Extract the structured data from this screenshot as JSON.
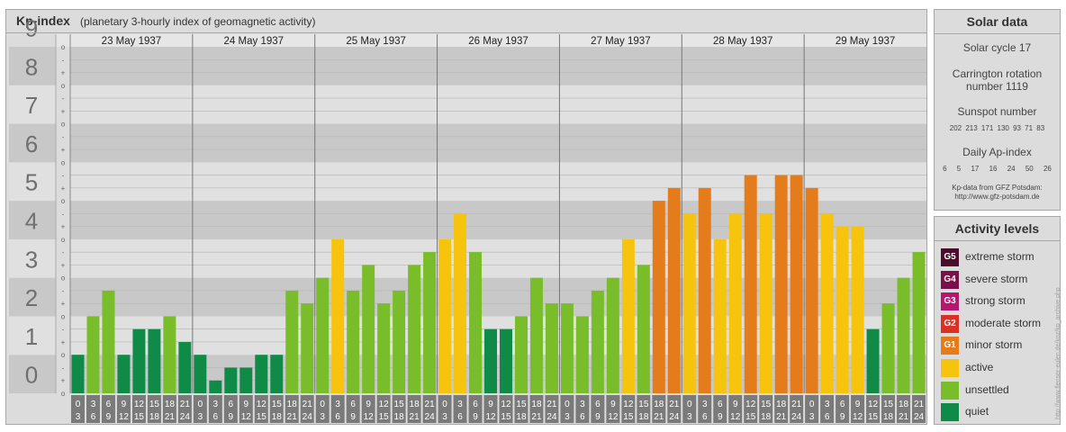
{
  "header": {
    "title": "Kp-index",
    "subtitle": "(planetary 3-hourly index of geomagnetic activity)"
  },
  "solar": {
    "title": "Solar data",
    "cycle": "Solar cycle 17",
    "carrington_line1": "Carrington rotation",
    "carrington_line2": "number 1119",
    "sunspot_label": "Sunspot number",
    "sunspot_values": "202 213 171 130 93 71 83",
    "ap_label": "Daily Ap-index",
    "ap_values": "6 5 17 16 24 50 26",
    "source_line1": "Kp-data from GFZ Potsdam:",
    "source_line2": "http://www.gfz-potsdam.de"
  },
  "levels": {
    "title": "Activity levels",
    "items": [
      {
        "badge": "G5",
        "label": "extreme storm",
        "color": "#4a0d2c"
      },
      {
        "badge": "G4",
        "label": "severe storm",
        "color": "#7a0f4b"
      },
      {
        "badge": "G3",
        "label": "strong storm",
        "color": "#b5176e"
      },
      {
        "badge": "G2",
        "label": "moderate storm",
        "color": "#d93124"
      },
      {
        "badge": "G1",
        "label": "minor storm",
        "color": "#e47c1b"
      },
      {
        "badge": "",
        "label": "active",
        "color": "#f6c30d"
      },
      {
        "badge": "",
        "label": "unsettled",
        "color": "#79bd2a"
      },
      {
        "badge": "",
        "label": "quiet",
        "color": "#0f8a47"
      }
    ]
  },
  "watermark": "http://www.flenser-eulen.de/koz/kp_archive.php",
  "chart_data": {
    "type": "bar",
    "ylim": [
      0,
      9
    ],
    "y_ticks": [
      "0",
      "1",
      "2",
      "3",
      "4",
      "5",
      "6",
      "7",
      "8",
      "9"
    ],
    "sub_ticks": [
      "o",
      "+",
      "-"
    ],
    "days": [
      "23 May 1937",
      "24 May 1937",
      "25 May 1937",
      "26 May 1937",
      "27 May 1937",
      "28 May 1937",
      "29 May 1937"
    ],
    "interval_start": [
      "0",
      "3",
      "6",
      "9",
      "12",
      "15",
      "18",
      "21"
    ],
    "interval_end": [
      "3",
      "6",
      "9",
      "12",
      "15",
      "18",
      "21",
      "24"
    ],
    "values": [
      1.0,
      2.0,
      2.667,
      1.0,
      1.667,
      1.667,
      2.0,
      1.333,
      1.0,
      0.333,
      0.667,
      0.667,
      1.0,
      1.0,
      2.667,
      2.333,
      3.0,
      4.0,
      2.667,
      3.333,
      2.333,
      2.667,
      3.333,
      3.667,
      4.0,
      4.667,
      3.667,
      1.667,
      1.667,
      2.0,
      3.0,
      2.333,
      2.333,
      2.0,
      2.667,
      3.0,
      4.0,
      3.333,
      5.0,
      5.333,
      4.667,
      5.333,
      4.0,
      4.667,
      5.667,
      4.667,
      5.667,
      5.667,
      5.333,
      4.667,
      4.333,
      4.333,
      1.667,
      2.333,
      3.0,
      3.667
    ],
    "level_colors": {
      "quiet": "#0f8a47",
      "unsettled": "#79bd2a",
      "active": "#f6c30d",
      "G1": "#e47c1b",
      "G2": "#d93124"
    }
  }
}
